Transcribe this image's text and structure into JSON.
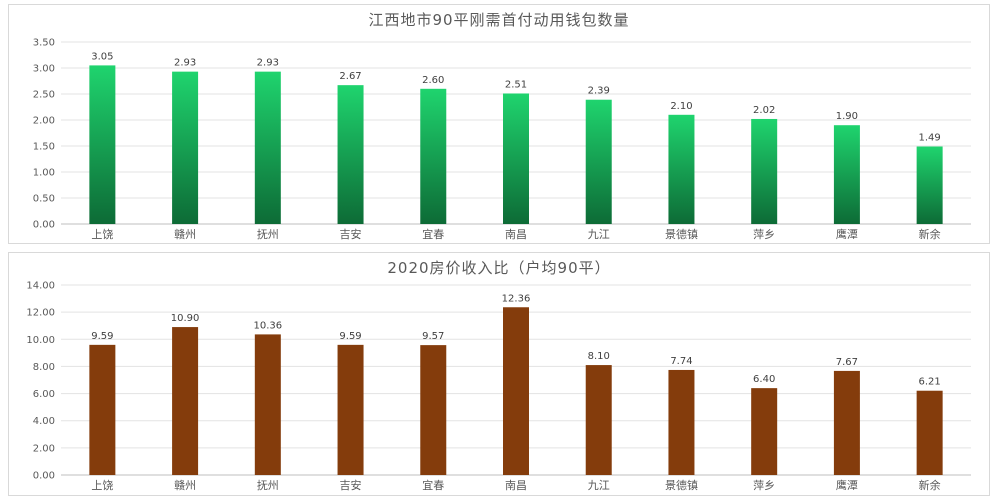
{
  "chart_data": [
    {
      "type": "bar",
      "title": "江西地市90平刚需首付动用钱包数量",
      "categories": [
        "上饶",
        "赣州",
        "抚州",
        "吉安",
        "宜春",
        "南昌",
        "九江",
        "景德镇",
        "萍乡",
        "鹰潭",
        "新余"
      ],
      "values": [
        3.05,
        2.93,
        2.93,
        2.67,
        2.6,
        2.51,
        2.39,
        2.1,
        2.02,
        1.9,
        1.49
      ],
      "value_labels": [
        "3.05",
        "2.93",
        "2.93",
        "2.67",
        "2.60",
        "2.51",
        "2.39",
        "2.10",
        "2.02",
        "1.90",
        "1.49"
      ],
      "yticks": [
        "0.00",
        "0.50",
        "1.00",
        "1.50",
        "2.00",
        "2.50",
        "3.00",
        "3.50"
      ],
      "ylim": [
        0,
        3.5
      ],
      "ystep": 0.5,
      "xlabel": "",
      "ylabel": "",
      "grid": true,
      "bar_color_top": "#1fd46e",
      "bar_color_bottom": "#0d6b36"
    },
    {
      "type": "bar",
      "title": "2020房价收入比（户均90平）",
      "categories": [
        "上饶",
        "赣州",
        "抚州",
        "吉安",
        "宜春",
        "南昌",
        "九江",
        "景德镇",
        "萍乡",
        "鹰潭",
        "新余"
      ],
      "values": [
        9.59,
        10.9,
        10.36,
        9.59,
        9.57,
        12.36,
        8.1,
        7.74,
        6.4,
        7.67,
        6.21
      ],
      "value_labels": [
        "9.59",
        "10.90",
        "10.36",
        "9.59",
        "9.57",
        "12.36",
        "8.10",
        "7.74",
        "6.40",
        "7.67",
        "6.21"
      ],
      "yticks": [
        "0.00",
        "2.00",
        "4.00",
        "6.00",
        "8.00",
        "10.00",
        "12.00",
        "14.00"
      ],
      "ylim": [
        0,
        14
      ],
      "ystep": 2,
      "xlabel": "",
      "ylabel": "",
      "grid": true,
      "bar_color": "#843c0c"
    }
  ]
}
